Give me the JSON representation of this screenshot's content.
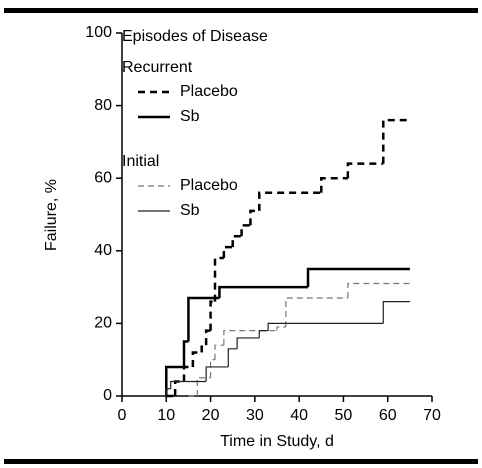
{
  "chart_data": {
    "type": "line",
    "drawstyle": "steps-post",
    "xlabel": "Time in Study, d",
    "ylabel": "Failure, %",
    "xlim": [
      0,
      70
    ],
    "ylim": [
      0,
      100
    ],
    "xticks": [
      0,
      10,
      20,
      30,
      40,
      50,
      60,
      70
    ],
    "yticks": [
      0,
      20,
      40,
      60,
      80,
      100
    ],
    "legend_title": "Episodes of Disease",
    "legend_groups": [
      "Recurrent",
      "Initial"
    ],
    "series": [
      {
        "name": "Placebo",
        "group": 0,
        "color": "#000000",
        "dashed": true,
        "width": 2.5,
        "x": [
          10,
          12,
          14,
          16,
          18,
          19,
          20,
          21,
          23,
          25,
          27,
          29,
          31,
          45,
          51,
          59,
          65
        ],
        "values": [
          0,
          4,
          8,
          12,
          14,
          18,
          26,
          38,
          41,
          44,
          47,
          51,
          56,
          60,
          64,
          76,
          76
        ]
      },
      {
        "name": "Sb",
        "group": 0,
        "color": "#000000",
        "dashed": false,
        "width": 2.5,
        "x": [
          10,
          10,
          14,
          15,
          22,
          42,
          65
        ],
        "values": [
          0,
          8,
          15,
          27,
          30,
          35,
          35
        ]
      },
      {
        "name": "Placebo",
        "group": 1,
        "color": "#777777",
        "dashed": true,
        "width": 1.2,
        "x": [
          15,
          17,
          20,
          21,
          23,
          35,
          37,
          51,
          65
        ],
        "values": [
          0,
          5,
          10,
          14,
          18,
          19,
          27,
          31,
          31
        ]
      },
      {
        "name": "Sb",
        "group": 1,
        "color": "#222222",
        "dashed": false,
        "width": 1.2,
        "x": [
          10,
          10,
          11,
          19,
          24,
          26,
          31,
          33,
          59,
          65
        ],
        "values": [
          0,
          2,
          4,
          8,
          13,
          16,
          18,
          20,
          26,
          26
        ]
      }
    ]
  }
}
